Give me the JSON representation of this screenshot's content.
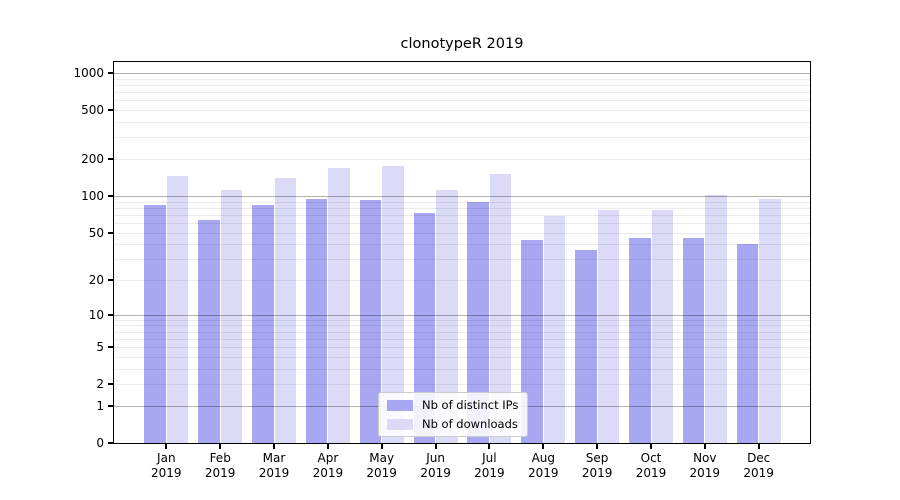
{
  "title": "clonotypeR 2019",
  "colors": {
    "bar_distinct_ips": "#a7a7f2",
    "bar_downloads": "#dbdbf8",
    "grid_major": "rgba(0,0,0,0.30)",
    "grid_minor": "rgba(0,0,0,0.08)",
    "spine": "#000000",
    "legend_border": "#cccccc"
  },
  "chart_data": {
    "type": "bar",
    "title": "clonotypeR 2019",
    "categories": [
      "Jan 2019",
      "Feb 2019",
      "Mar 2019",
      "Apr 2019",
      "May 2019",
      "Jun 2019",
      "Jul 2019",
      "Aug 2019",
      "Sep 2019",
      "Oct 2019",
      "Nov 2019",
      "Dec 2019"
    ],
    "series": [
      {
        "name": "Nb of distinct IPs",
        "color": "#a7a7f2",
        "values": [
          84,
          64,
          84,
          95,
          92,
          72,
          89,
          43,
          36,
          45,
          45,
          40
        ]
      },
      {
        "name": "Nb of downloads",
        "color": "#dbdbf8",
        "values": [
          145,
          112,
          141,
          170,
          177,
          112,
          150,
          68,
          77,
          77,
          101,
          94
        ]
      }
    ],
    "xlabel": "",
    "ylabel": "",
    "yscale": "log1p",
    "yticks": [
      0,
      1,
      2,
      5,
      10,
      20,
      50,
      100,
      200,
      500,
      1000
    ],
    "ytick_major_gridlines": [
      1,
      10,
      100,
      1000
    ],
    "ylim": [
      0,
      1270
    ],
    "grid": "horizontal major+minor",
    "legend_position": "lower center inside plot"
  }
}
